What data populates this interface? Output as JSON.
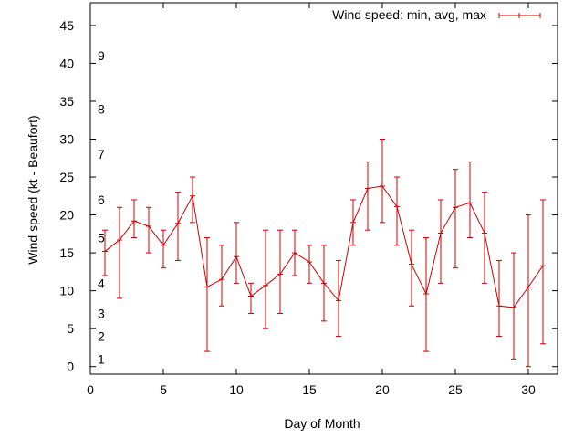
{
  "chart_data": {
    "type": "line",
    "xlabel": "Day of Month",
    "ylabel": "Wind speed (kt - Beaufort)",
    "xlim": [
      0,
      32
    ],
    "ylim": [
      -1,
      48
    ],
    "xticks": [
      0,
      5,
      10,
      15,
      20,
      25,
      30
    ],
    "yticks": [
      0,
      5,
      10,
      15,
      20,
      25,
      30,
      35,
      40,
      45
    ],
    "grid": false,
    "legend_position": "top-right",
    "beaufort_labels": [
      {
        "label": "1",
        "value": 1
      },
      {
        "label": "2",
        "value": 4
      },
      {
        "label": "3",
        "value": 7
      },
      {
        "label": "4",
        "value": 11
      },
      {
        "label": "5",
        "value": 17
      },
      {
        "label": "6",
        "value": 22
      },
      {
        "label": "7",
        "value": 28
      },
      {
        "label": "8",
        "value": 34
      },
      {
        "label": "9",
        "value": 41
      }
    ],
    "series": [
      {
        "name": "Wind speed: min, avg, max",
        "color": "#cc0000",
        "x": [
          1,
          2,
          3,
          4,
          5,
          6,
          7,
          8,
          9,
          10,
          11,
          12,
          13,
          14,
          15,
          16,
          17,
          18,
          19,
          20,
          21,
          22,
          23,
          24,
          25,
          26,
          27,
          28,
          29,
          30,
          31
        ],
        "avg": [
          15.2,
          16.7,
          19.2,
          18.5,
          16.0,
          18.9,
          22.5,
          10.5,
          11.5,
          14.5,
          9.3,
          10.7,
          12.2,
          15.0,
          13.8,
          11.0,
          8.7,
          19.0,
          23.5,
          23.8,
          21.1,
          13.5,
          9.6,
          17.6,
          21.0,
          21.6,
          17.6,
          8.0,
          7.8,
          10.5,
          13.3
        ],
        "min": [
          12,
          9,
          17,
          15,
          13,
          14,
          19,
          2,
          8,
          11,
          7,
          5,
          7,
          12,
          11,
          6,
          4,
          16,
          18,
          19,
          16,
          8,
          2,
          11,
          13,
          17,
          11,
          4,
          1,
          0,
          3
        ],
        "max": [
          18,
          21,
          22,
          21,
          18,
          23,
          25,
          17,
          16,
          19,
          11,
          18,
          18,
          18,
          16,
          16,
          14,
          22,
          27,
          30,
          25,
          18,
          17,
          22,
          26,
          27,
          23,
          14,
          15,
          20,
          22
        ]
      }
    ]
  }
}
